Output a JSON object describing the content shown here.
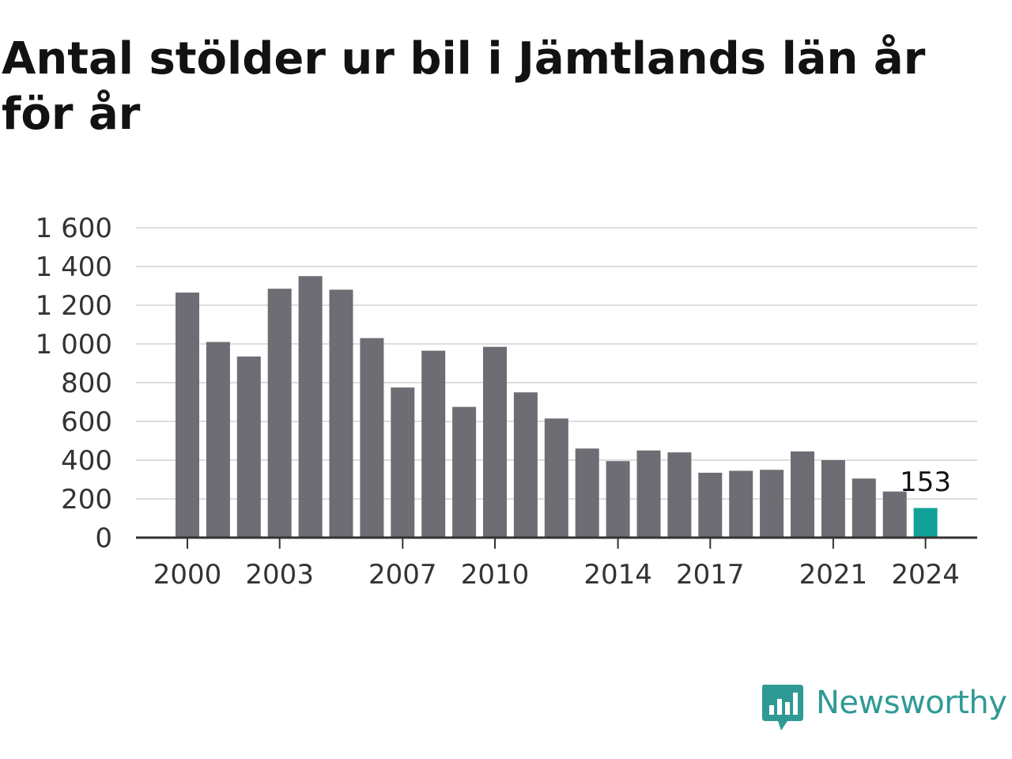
{
  "chart_data": {
    "type": "bar",
    "title": "Antal stölder ur bil i Jämtlands län år för år",
    "xlabel": "",
    "ylabel": "",
    "categories": [
      "2000",
      "2001",
      "2002",
      "2003",
      "2004",
      "2005",
      "2006",
      "2007",
      "2008",
      "2009",
      "2010",
      "2011",
      "2012",
      "2013",
      "2014",
      "2015",
      "2016",
      "2017",
      "2018",
      "2019",
      "2020",
      "2021",
      "2022",
      "2023",
      "2024"
    ],
    "values": [
      1265,
      1010,
      935,
      1285,
      1350,
      1280,
      1030,
      775,
      965,
      675,
      985,
      750,
      615,
      460,
      395,
      450,
      440,
      335,
      345,
      350,
      445,
      400,
      305,
      238,
      153
    ],
    "ylim": [
      0,
      1600
    ],
    "yticks": [
      0,
      200,
      400,
      600,
      800,
      1000,
      1200,
      1400,
      1600
    ],
    "ytick_labels": [
      "0",
      "200",
      "400",
      "600",
      "800",
      "1 000",
      "1 200",
      "1 400",
      "1 600"
    ],
    "xtick_labels": [
      "2000",
      "2003",
      "2007",
      "2010",
      "2014",
      "2017",
      "2021",
      "2024"
    ],
    "annotation": {
      "category": "2024",
      "text": "153"
    },
    "grid": true,
    "legend": "none",
    "colors": {
      "bar": "#6e6d73",
      "highlight": "#12a197",
      "grid": "#dddddd",
      "axis": "#333333"
    }
  },
  "brand": {
    "name": "Newsworthy",
    "color": "#2f9a95",
    "icon": "newsworthy-logo-icon"
  }
}
